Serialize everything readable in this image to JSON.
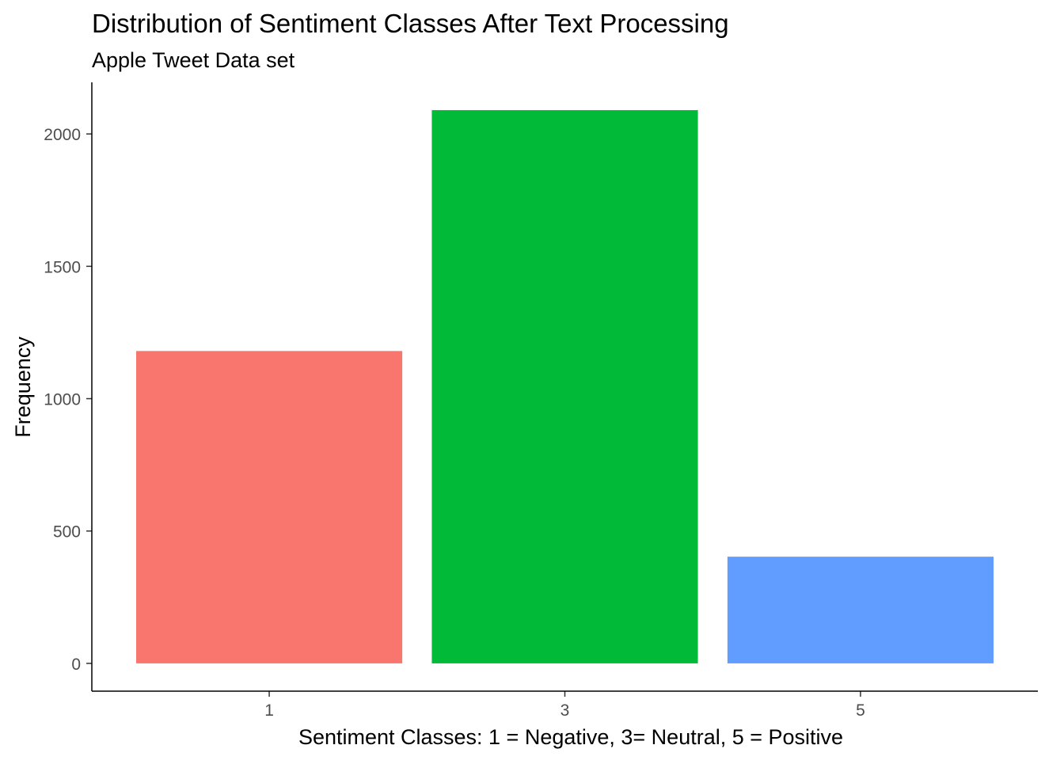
{
  "chart_data": {
    "type": "bar",
    "title": "Distribution of Sentiment Classes After Text Processing",
    "subtitle": "Apple Tweet Data set",
    "xlabel": "Sentiment Classes: 1 = Negative, 3= Neutral, 5 = Positive",
    "ylabel": "Frequency",
    "categories": [
      "1",
      "3",
      "5"
    ],
    "values": [
      1180,
      2090,
      403
    ],
    "colors": [
      "#F8766D",
      "#00BA38",
      "#619CFF"
    ],
    "ylim": [
      -105,
      2195
    ],
    "yticks": [
      0,
      500,
      1000,
      1500,
      2000
    ],
    "grid": false,
    "legend": "none"
  }
}
